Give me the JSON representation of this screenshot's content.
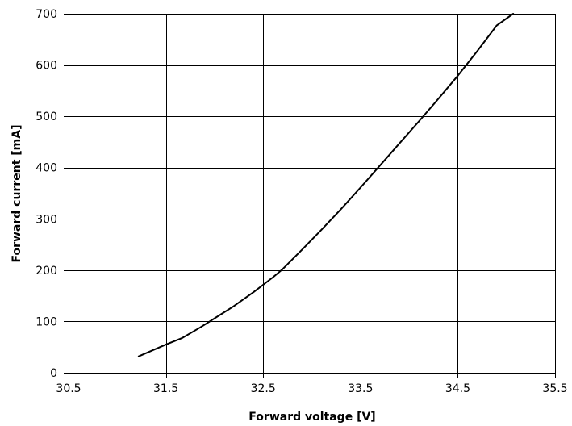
{
  "chart_data": {
    "type": "line",
    "title": "",
    "xlabel": "Forward voltage [V]",
    "ylabel": "Forward current [mA]",
    "xlim": [
      30.5,
      35.5
    ],
    "ylim": [
      0,
      700
    ],
    "grid": true,
    "legend": "none",
    "x_ticks": [
      "30.5",
      "31.5",
      "32.5",
      "33.5",
      "34.5",
      "35.5"
    ],
    "y_ticks": [
      "0",
      "100",
      "200",
      "300",
      "400",
      "500",
      "600",
      "700"
    ],
    "series": [
      {
        "color": "#000000",
        "x": [
          31.22,
          31.5,
          31.67,
          31.85,
          32.0,
          32.2,
          32.4,
          32.6,
          32.7,
          32.9,
          33.1,
          33.3,
          33.5,
          33.7,
          33.9,
          34.1,
          34.3,
          34.5,
          34.7,
          34.9,
          35.07
        ],
        "y": [
          32,
          55,
          68,
          88,
          106,
          130,
          157,
          186,
          202,
          240,
          279,
          319,
          361,
          404,
          447,
          490,
          534,
          579,
          627,
          677,
          700
        ]
      }
    ]
  }
}
